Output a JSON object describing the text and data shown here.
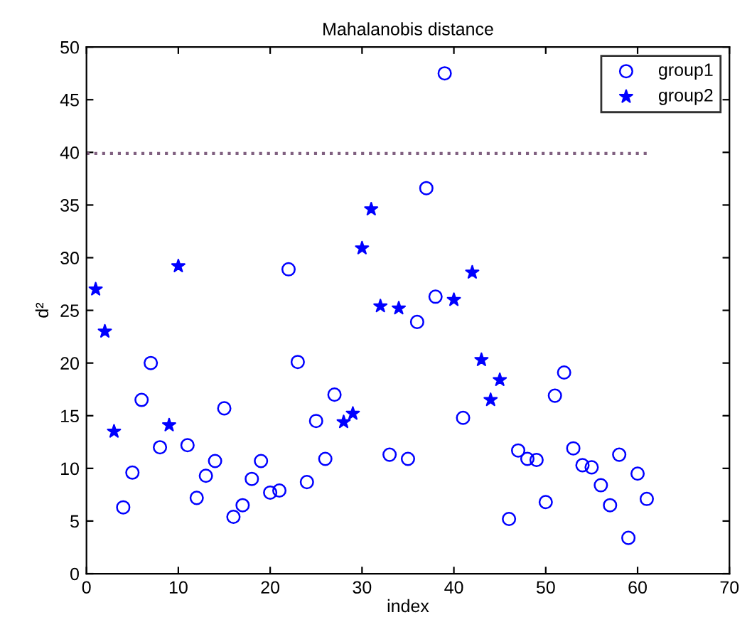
{
  "chart_data": {
    "type": "scatter",
    "title": "Mahalanobis distance",
    "xlabel": "index",
    "ylabel": "d²",
    "xlim": [
      0,
      70
    ],
    "xticks": [
      0,
      10,
      20,
      30,
      40,
      50,
      60,
      70
    ],
    "ylim": [
      0,
      50
    ],
    "yticks": [
      0,
      5,
      10,
      15,
      20,
      25,
      30,
      35,
      40,
      45,
      50
    ],
    "grid": false,
    "legend": "top right",
    "series": [
      {
        "name": "group1",
        "color": "#0000ff",
        "marker": "circle",
        "x": [
          4,
          5,
          6,
          7,
          8,
          11,
          12,
          13,
          14,
          15,
          16,
          17,
          18,
          19,
          20,
          21,
          22,
          23,
          24,
          25,
          26,
          27,
          33,
          35,
          36,
          37,
          38,
          39,
          41,
          46,
          47,
          48,
          49,
          50,
          51,
          52,
          53,
          54,
          55,
          56,
          57,
          58,
          59,
          60,
          61
        ],
        "values": [
          6.3,
          9.6,
          16.5,
          20,
          12,
          12.2,
          7.2,
          9.3,
          10.7,
          15.7,
          5.4,
          6.5,
          9,
          10.7,
          7.7,
          7.9,
          28.9,
          20.1,
          8.7,
          14.5,
          10.9,
          17,
          11.3,
          10.9,
          23.9,
          36.6,
          26.3,
          47.5,
          14.8,
          5.2,
          11.7,
          10.9,
          10.8,
          6.8,
          16.9,
          19.1,
          11.9,
          10.3,
          10.1,
          8.4,
          6.5,
          11.3,
          3.4,
          9.5,
          7.1
        ]
      },
      {
        "name": "group2",
        "color": "#0000ff",
        "marker": "star",
        "x": [
          1,
          2,
          3,
          9,
          10,
          28,
          29,
          30,
          31,
          32,
          34,
          40,
          42,
          43,
          44,
          45
        ],
        "values": [
          27,
          23,
          13.5,
          14.1,
          29.2,
          14.4,
          15.2,
          30.9,
          34.6,
          25.4,
          25.2,
          26,
          28.6,
          20.3,
          16.5,
          18.4
        ]
      },
      {
        "type": "line",
        "color": "#806080",
        "line_style": "dotted",
        "x": [
          0,
          61
        ],
        "values": [
          39.9,
          39.9
        ]
      }
    ]
  }
}
